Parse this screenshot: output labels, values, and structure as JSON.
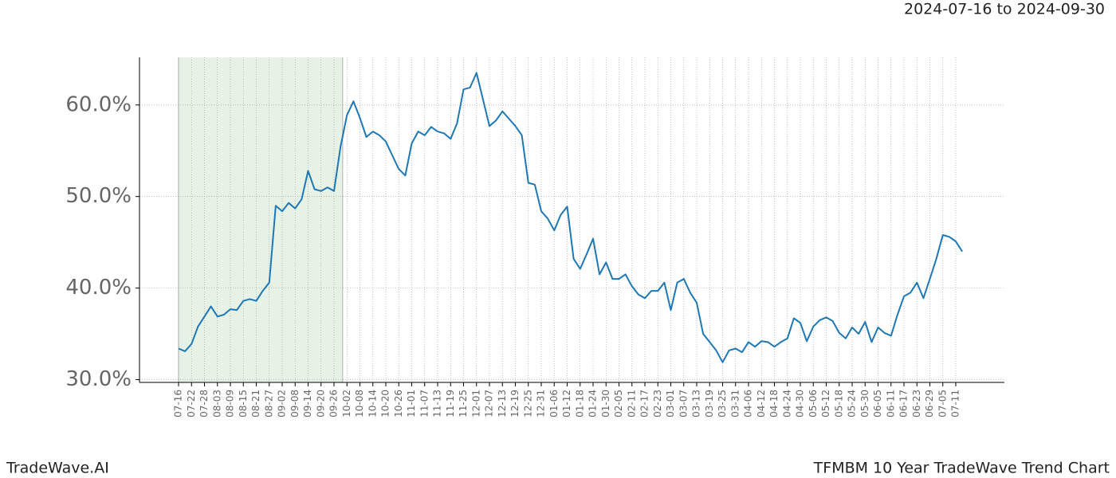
{
  "chart_data": {
    "type": "line",
    "subtitle": "2024-07-16 to 2024-09-30",
    "footer_left": "TradeWave.AI",
    "footer_right": "TFMBM 10 Year TradeWave Trend Chart",
    "categories": [
      "07-16",
      null,
      "07-22",
      null,
      "07-28",
      null,
      "08-03",
      null,
      "08-09",
      null,
      "08-15",
      null,
      "08-21",
      null,
      "08-27",
      null,
      "09-02",
      null,
      "09-08",
      null,
      "09-14",
      null,
      "09-20",
      null,
      "09-26",
      null,
      "10-02",
      null,
      "10-08",
      null,
      "10-14",
      null,
      "10-20",
      null,
      "10-26",
      null,
      "11-01",
      null,
      "11-07",
      null,
      "11-13",
      null,
      "11-19",
      null,
      "11-25",
      null,
      "12-01",
      null,
      "12-07",
      null,
      "12-13",
      null,
      "12-19",
      null,
      "12-25",
      null,
      "12-31",
      null,
      "01-06",
      null,
      "01-12",
      null,
      "01-18",
      null,
      "01-24",
      null,
      "01-30",
      null,
      "02-05",
      null,
      "02-11",
      null,
      "02-17",
      null,
      "02-23",
      null,
      "03-01",
      null,
      "03-07",
      null,
      "03-13",
      null,
      "03-19",
      null,
      "03-25",
      null,
      "03-31",
      null,
      "04-06",
      null,
      "04-12",
      null,
      "04-18",
      null,
      "04-24",
      null,
      "04-30",
      null,
      "05-06",
      null,
      "05-12",
      null,
      "05-18",
      null,
      "05-24",
      null,
      "05-30",
      null,
      "06-05",
      null,
      "06-11",
      null,
      "06-17",
      null,
      "06-23",
      null,
      "06-29",
      null,
      "07-05",
      null,
      "07-11",
      null
    ],
    "values": [
      33.4,
      33.1,
      33.9,
      35.8,
      36.9,
      38.0,
      36.9,
      37.1,
      37.7,
      37.6,
      38.6,
      38.8,
      38.6,
      39.7,
      40.6,
      49.0,
      48.4,
      49.3,
      48.7,
      49.7,
      52.8,
      50.8,
      50.6,
      51.0,
      50.6,
      55.4,
      58.9,
      60.4,
      58.6,
      56.5,
      57.1,
      56.7,
      56.0,
      54.5,
      53.0,
      52.3,
      55.8,
      57.1,
      56.7,
      57.6,
      57.1,
      56.9,
      56.3,
      58.0,
      61.7,
      61.9,
      63.5,
      60.6,
      57.7,
      58.3,
      59.3,
      58.5,
      57.7,
      56.7,
      51.5,
      51.3,
      48.4,
      47.6,
      46.3,
      48.0,
      48.9,
      43.2,
      42.1,
      43.7,
      45.4,
      41.5,
      42.8,
      41.0,
      41.0,
      41.5,
      40.2,
      39.3,
      38.9,
      39.7,
      39.7,
      40.6,
      37.6,
      40.6,
      41.0,
      39.5,
      38.4,
      35.0,
      34.1,
      33.2,
      31.9,
      33.2,
      33.4,
      33.0,
      34.1,
      33.6,
      34.2,
      34.1,
      33.6,
      34.1,
      34.5,
      36.7,
      36.2,
      34.2,
      35.8,
      36.5,
      36.8,
      36.4,
      35.1,
      34.5,
      35.7,
      35.0,
      36.3,
      34.1,
      35.7,
      35.1,
      34.8,
      37.1,
      39.1,
      39.5,
      40.6,
      38.9,
      41.0,
      43.2,
      45.8,
      45.6,
      45.1,
      44.0
    ],
    "color": "#1f77b4",
    "highlight": {
      "start": "07-16",
      "end": "09-30",
      "color": "#e6f2e6"
    },
    "ylim": [
      29.7,
      65.2
    ],
    "yticks": [
      {
        "value": 30,
        "label": "30.0%"
      },
      {
        "value": 40,
        "label": "40.0%"
      },
      {
        "value": 50,
        "label": "50.0%"
      },
      {
        "value": 60,
        "label": "60.0%"
      }
    ],
    "grid": true
  }
}
